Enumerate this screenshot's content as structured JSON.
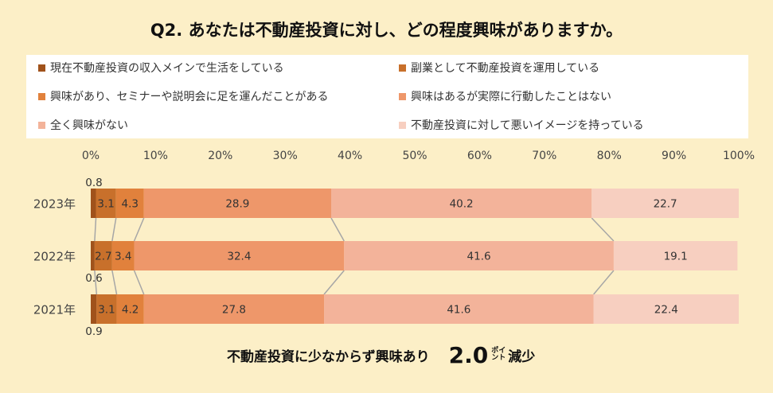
{
  "title": "Q2. あなたは不動産投資に対し、どの程度興味がありますか。",
  "chart_data": {
    "type": "bar",
    "orientation": "horizontal",
    "stacked": "percent",
    "categories": [
      "2023年",
      "2022年",
      "2021年"
    ],
    "series": [
      {
        "name": "現在不動産投資の収入メインで生活をしている",
        "values": [
          0.8,
          0.6,
          0.9
        ],
        "color": "#a0521b"
      },
      {
        "name": "副業として不動産投資を運用している",
        "values": [
          3.1,
          2.7,
          3.1
        ],
        "color": "#c8702b"
      },
      {
        "name": "興味があり、セミナーや説明会に足を運んだことがある",
        "values": [
          4.3,
          3.4,
          4.2
        ],
        "color": "#e1813c"
      },
      {
        "name": "興味はあるが実際に行動したことはない",
        "values": [
          28.9,
          32.4,
          27.8
        ],
        "color": "#ee976a"
      },
      {
        "name": "全く興味がない",
        "values": [
          40.2,
          41.6,
          41.6
        ],
        "color": "#f3b39a"
      },
      {
        "name": "不動産投資に対して悪いイメージを持っている",
        "values": [
          22.7,
          19.1,
          22.4
        ],
        "color": "#f7cfc0"
      }
    ],
    "data_labels": [
      [
        "0.8",
        "3.1",
        "4.3",
        "28.9",
        "40.2",
        "22.7"
      ],
      [
        "0.6",
        "2.7",
        "3.4",
        "32.4",
        "41.6",
        "19.1"
      ],
      [
        "0.9",
        "3.1",
        "4.2",
        "27.8",
        "41.6",
        "22.4"
      ]
    ],
    "x_ticks": [
      "0%",
      "10%",
      "20%",
      "30%",
      "40%",
      "50%",
      "60%",
      "70%",
      "80%",
      "90%",
      "100%"
    ],
    "xlim": [
      0,
      100
    ],
    "legend_position": "top",
    "series_lines": true,
    "grid": false
  },
  "note": {
    "text": "不動産投資に少なからず興味あり",
    "value": "2.0",
    "unit_top": "ポイ",
    "unit_bottom": "ント",
    "suffix": "減少"
  }
}
